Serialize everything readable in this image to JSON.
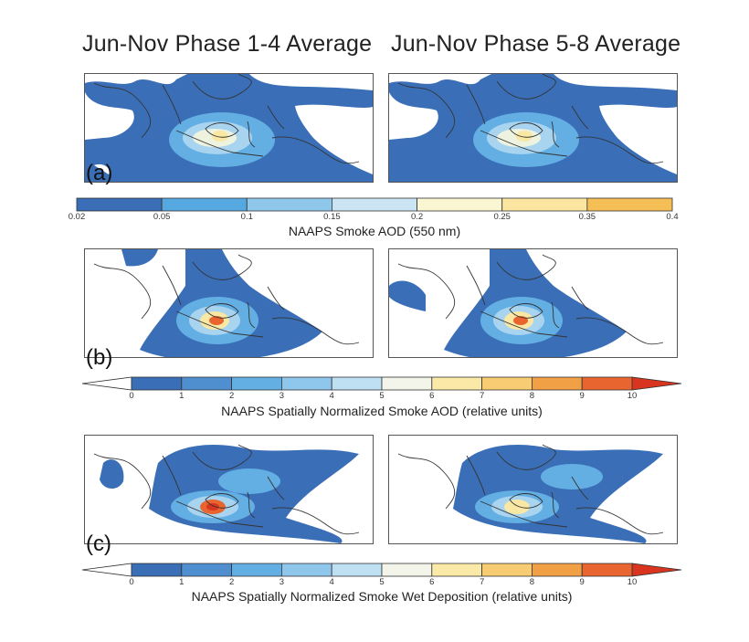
{
  "columns": [
    {
      "title": "Jun-Nov Phase 1-4 Average"
    },
    {
      "title": "Jun-Nov Phase 5-8 Average"
    }
  ],
  "rows": [
    {
      "label": "(a)",
      "colorbar": {
        "title": "NAAPS Smoke AOD (550 nm)",
        "ticks": [
          "0.02",
          "0.05",
          "0.1",
          "0.15",
          "0.2",
          "0.25",
          "0.35",
          "0.4"
        ],
        "colors": [
          "#3a6fb8",
          "#55a8e0",
          "#8fc6ec",
          "#cbe4f4",
          "#fbf6d2",
          "#fbe5a0",
          "#f6bf55"
        ],
        "arrows": false
      }
    },
    {
      "label": "(b)",
      "colorbar": {
        "title": "NAAPS Spatially Normalized Smoke AOD (relative units)",
        "ticks": [
          "0",
          "1",
          "2",
          "3",
          "4",
          "5",
          "6",
          "7",
          "8",
          "9",
          "10"
        ],
        "colors": [
          "#3a6fb8",
          "#4f8fd0",
          "#63aee2",
          "#8fc6ec",
          "#bfdff3",
          "#f3f5ea",
          "#fbe9a8",
          "#f8cc72",
          "#f2a046",
          "#e8652f"
        ],
        "arrows": true,
        "arrow_left_color": "#ffffff",
        "arrow_right_color": "#d8341f"
      }
    },
    {
      "label": "(c)",
      "colorbar": {
        "title": "NAAPS Spatially Normalized Smoke Wet Deposition (relative units)",
        "ticks": [
          "0",
          "1",
          "2",
          "3",
          "4",
          "5",
          "6",
          "7",
          "8",
          "9",
          "10"
        ],
        "colors": [
          "#3a6fb8",
          "#4f8fd0",
          "#63aee2",
          "#8fc6ec",
          "#bfdff3",
          "#f3f5ea",
          "#fbe9a8",
          "#f8cc72",
          "#f2a046",
          "#e8652f"
        ],
        "arrows": true,
        "arrow_left_color": "#ffffff",
        "arrow_right_color": "#d8341f"
      }
    }
  ],
  "map_colors": {
    "ocean_fill": "#3a6fb8",
    "level_2": "#63aee2",
    "level_3": "#a9d4f0",
    "level_4": "#eef3df",
    "level_5": "#f9e7a4",
    "hotspot": "#e8652f",
    "hotspot_core": "#d8341f",
    "coastline": "#333333"
  }
}
